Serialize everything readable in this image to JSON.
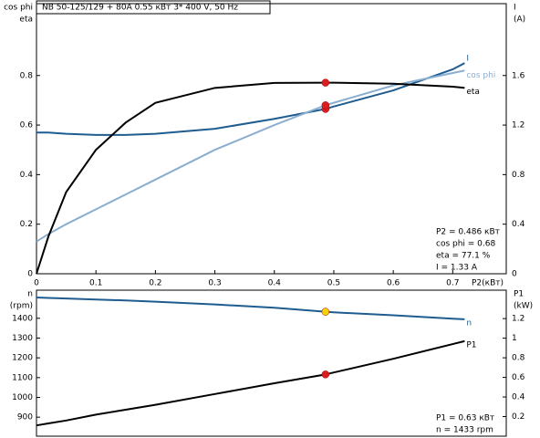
{
  "header": "NB 50-125/129 + 80A    0.55 кВт   3* 400 V, 50 Hz",
  "chart_data": [
    {
      "type": "line",
      "x": [
        0,
        0.02,
        0.05,
        0.1,
        0.15,
        0.2,
        0.3,
        0.4,
        0.486,
        0.5,
        0.6,
        0.7,
        0.72
      ],
      "xlim": [
        0,
        0.79
      ],
      "xticks": [
        0,
        0.1,
        0.2,
        0.3,
        0.4,
        0.5,
        0.6,
        0.7
      ],
      "ylim": [
        0,
        1.09
      ],
      "yticks": [
        0,
        0.2,
        0.4,
        0.6,
        0.8
      ],
      "y2lim": [
        0,
        2.18
      ],
      "y2ticks": [
        0,
        0.4,
        0.8,
        1.2,
        1.6
      ],
      "x_label": "P2(кВт)",
      "y_label": [
        "cos phi",
        "eta"
      ],
      "y2_label": [
        "I",
        "(A)"
      ],
      "series": [
        {
          "name": "I",
          "color": "#1f5c8f",
          "axis": "y2",
          "values": [
            1.14,
            1.14,
            1.13,
            1.12,
            1.12,
            1.13,
            1.17,
            1.25,
            1.33,
            1.35,
            1.48,
            1.65,
            1.7
          ],
          "marker": {
            "x": 0.486,
            "y": 1.33,
            "color": "#d81e1e"
          }
        },
        {
          "name": "cos phi",
          "color": "#8aaed0",
          "values": [
            0.13,
            0.16,
            0.2,
            0.26,
            0.32,
            0.38,
            0.5,
            0.6,
            0.68,
            0.69,
            0.76,
            0.81,
            0.82
          ],
          "marker": {
            "x": 0.486,
            "y": 0.68,
            "color": "#d81e1e"
          }
        },
        {
          "name": "eta",
          "color": "#000000",
          "values": [
            0,
            0.15,
            0.33,
            0.5,
            0.61,
            0.69,
            0.75,
            0.77,
            0.771,
            0.771,
            0.767,
            0.755,
            0.75
          ],
          "marker": {
            "x": 0.486,
            "y": 0.771,
            "color": "#d81e1e"
          }
        }
      ],
      "info": [
        "P2  = 0.486 кВт",
        "cos phi = 0.68",
        "eta  = 77.1 %",
        "I   = 1.33 A"
      ]
    },
    {
      "type": "line",
      "x": [
        0,
        0.02,
        0.05,
        0.1,
        0.15,
        0.2,
        0.3,
        0.4,
        0.486,
        0.5,
        0.6,
        0.7,
        0.72
      ],
      "xlim": [
        0,
        0.79
      ],
      "ylim": [
        804,
        1542
      ],
      "yticks": [
        900,
        1000,
        1100,
        1200,
        1300,
        1400
      ],
      "y2lim": [
        0,
        1.49
      ],
      "y2ticks": [
        0.2,
        0.4,
        0.6,
        0.8,
        1,
        1.2
      ],
      "y_label": [
        "n",
        "(rpm)"
      ],
      "y2_label": [
        "P1",
        "(kW)"
      ],
      "series": [
        {
          "name": "n",
          "color": "#1f5c8f",
          "values": [
            1505,
            1503,
            1500,
            1495,
            1490,
            1484,
            1470,
            1453,
            1433,
            1430,
            1415,
            1398,
            1395
          ],
          "marker": {
            "x": 0.486,
            "y": 1433,
            "color": "#f5d300"
          }
        },
        {
          "name": "P1",
          "color": "#000000",
          "axis": "y2",
          "values": [
            0.11,
            0.13,
            0.16,
            0.22,
            0.27,
            0.32,
            0.43,
            0.54,
            0.63,
            0.65,
            0.79,
            0.94,
            0.97
          ],
          "marker": {
            "x": 0.486,
            "y": 0.63,
            "color": "#d81e1e"
          }
        }
      ],
      "info": [
        "P1  = 0.63 кВт",
        "n   = 1433 rpm"
      ]
    }
  ]
}
